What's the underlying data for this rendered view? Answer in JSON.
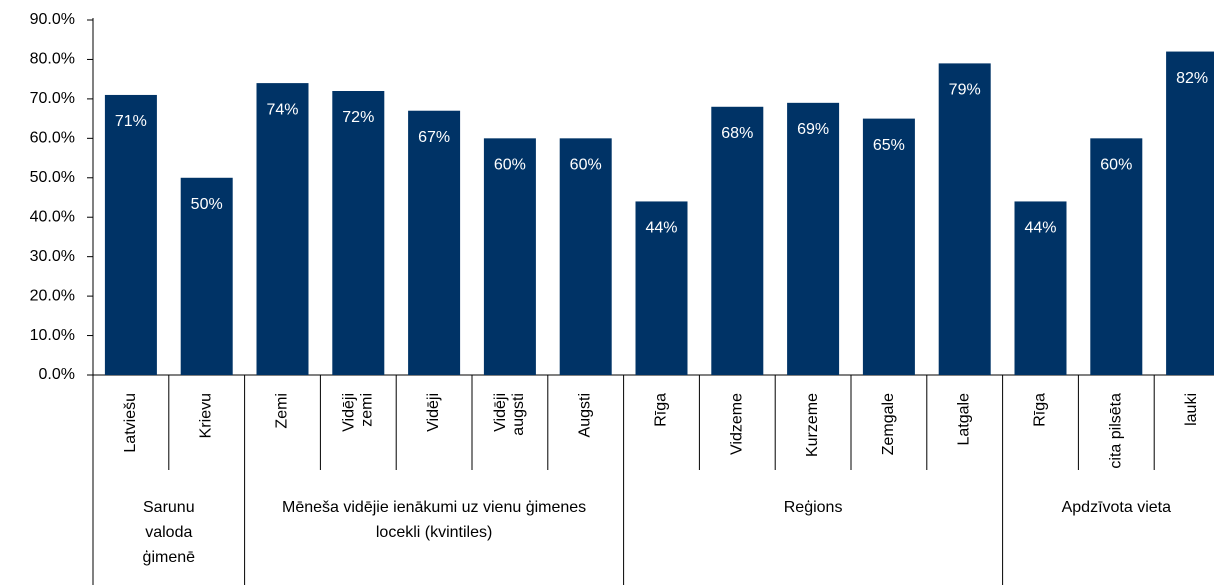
{
  "chart_data": {
    "type": "bar",
    "groups": [
      {
        "name": "Sarunu valoda ģimenē",
        "categories": [
          "Latviešu",
          "Krievu"
        ]
      },
      {
        "name": "Mēneša vidējie ienākumi uz vienu ģimenes locekli (kvintiles)",
        "categories": [
          "Zemi",
          "Vidēji zemi",
          "Vidēji",
          "Vidēji augsti",
          "Augsti"
        ]
      },
      {
        "name": "Reģions",
        "categories": [
          "Rīga",
          "Vidzeme",
          "Kurzeme",
          "Zemgale",
          "Latgale"
        ]
      },
      {
        "name": "Apdzīvota vieta",
        "categories": [
          "Rīga",
          "cita pilsēta",
          "lauki"
        ]
      }
    ],
    "values": [
      71,
      50,
      74,
      72,
      67,
      60,
      60,
      44,
      68,
      69,
      65,
      79,
      44,
      60,
      82
    ],
    "value_labels": [
      "71%",
      "50%",
      "74%",
      "72%",
      "67%",
      "60%",
      "60%",
      "44%",
      "68%",
      "69%",
      "65%",
      "79%",
      "44%",
      "60%",
      "82%"
    ],
    "color": "#003366",
    "ylim": [
      0,
      90
    ],
    "yticks": [
      {
        "value": 0,
        "label": "0.0%"
      },
      {
        "value": 10,
        "label": "10.0%"
      },
      {
        "value": 20,
        "label": "20.0%"
      },
      {
        "value": 30,
        "label": "30.0%"
      },
      {
        "value": 40,
        "label": "40.0%"
      },
      {
        "value": 50,
        "label": "50.0%"
      },
      {
        "value": 60,
        "label": "60.0%"
      },
      {
        "value": 70,
        "label": "70.0%"
      },
      {
        "value": 80,
        "label": "80.0%"
      },
      {
        "value": 90,
        "label": "90.0%"
      }
    ]
  }
}
